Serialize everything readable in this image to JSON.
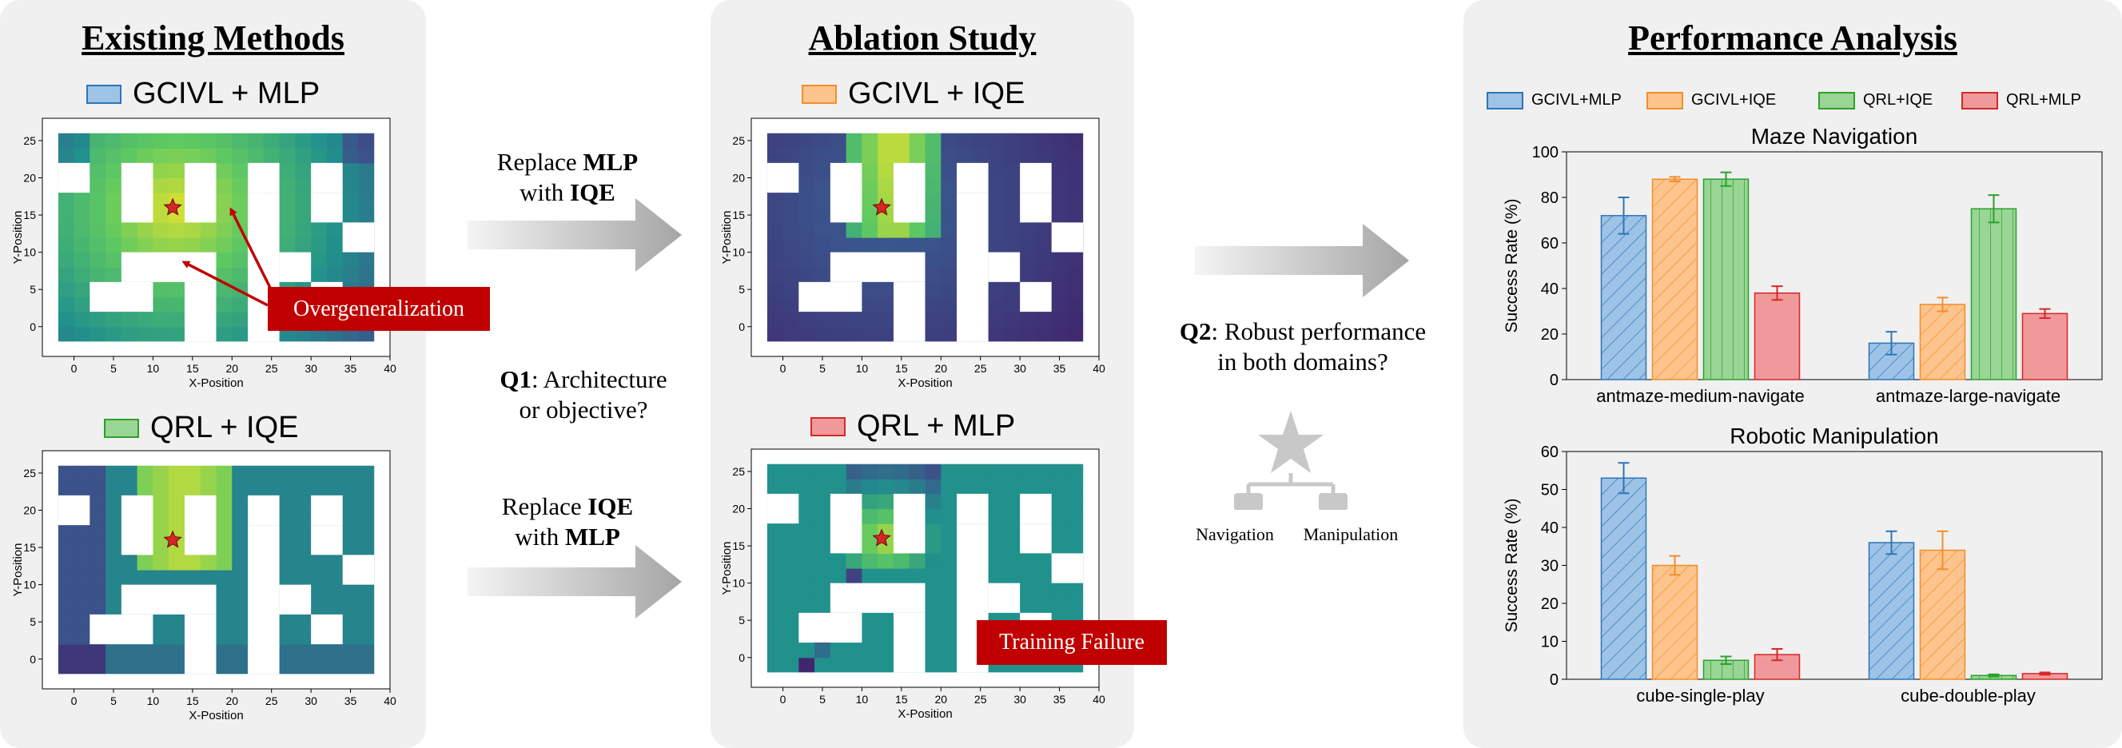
{
  "panels": {
    "existing": {
      "title": "Existing Methods"
    },
    "ablation": {
      "title": "Ablation Study"
    },
    "performance": {
      "title": "Performance Analysis"
    }
  },
  "maps": [
    {
      "id": "m1",
      "label": "GCIVL + MLP",
      "swatch": "blue",
      "field": "gcivl_mlp"
    },
    {
      "id": "m2",
      "label": "QRL + IQE",
      "swatch": "green",
      "field": "qrl_iqe"
    },
    {
      "id": "m3",
      "label": "GCIVL + IQE",
      "swatch": "orange",
      "field": "gcivl_iqe"
    },
    {
      "id": "m4",
      "label": "QRL + MLP",
      "swatch": "red",
      "field": "qrl_mlp"
    }
  ],
  "map_axes": {
    "xlabel": "X-Position",
    "ylabel": "Y-Position",
    "xticks": [
      "0",
      "5",
      "10",
      "15",
      "20",
      "25",
      "30",
      "35",
      "40"
    ],
    "yticks": [
      "0",
      "5",
      "10",
      "15",
      "20",
      "25"
    ]
  },
  "callouts": {
    "overgeneralization": "Overgeneralization",
    "training_failure": "Training Failure"
  },
  "middle": {
    "replace1_pre": "Replace ",
    "replace1_b1": "MLP",
    "replace1_line2_pre": "with ",
    "replace1_b2": "IQE",
    "replace2_pre": "Replace ",
    "replace2_b1": "IQE",
    "replace2_line2_pre": "with ",
    "replace2_b2": "MLP",
    "q1_b": "Q1",
    "q1_rest": ": Architecture",
    "q1_line2": "or objective?",
    "q2_b": "Q2",
    "q2_rest": ": Robust performance",
    "q2_line2": "in both domains?",
    "tree_left": "Navigation",
    "tree_right": "Manipulation"
  },
  "colors": {
    "blue": {
      "fill": "#9dc3e6",
      "stroke": "#2e75b6"
    },
    "orange": {
      "fill": "#fdc48d",
      "stroke": "#f28e2b"
    },
    "green": {
      "fill": "#99d594",
      "stroke": "#2ca02c"
    },
    "red": {
      "fill": "#f0999b",
      "stroke": "#d62728"
    },
    "callout": "#c00000"
  },
  "chart_data": [
    {
      "type": "bar",
      "title": "Maze Navigation",
      "ylabel": "Success Rate (%)",
      "ylim": [
        0,
        100
      ],
      "yticks": [
        "0",
        "20",
        "40",
        "60",
        "80",
        "100"
      ],
      "categories": [
        "antmaze-medium-navigate",
        "antmaze-large-navigate"
      ],
      "legend": "top",
      "series": [
        {
          "name": "GCIVL+MLP",
          "values": [
            72,
            16
          ],
          "errors": [
            8,
            5
          ]
        },
        {
          "name": "GCIVL+IQE",
          "values": [
            88,
            33
          ],
          "errors": [
            1,
            3
          ]
        },
        {
          "name": "QRL+IQE",
          "values": [
            88,
            75
          ],
          "errors": [
            3,
            6
          ]
        },
        {
          "name": "QRL+MLP",
          "values": [
            38,
            29
          ],
          "errors": [
            3,
            2
          ]
        }
      ]
    },
    {
      "type": "bar",
      "title": "Robotic Manipulation",
      "ylabel": "Success Rate (%)",
      "ylim": [
        0,
        60
      ],
      "yticks": [
        "0",
        "10",
        "20",
        "30",
        "40",
        "50",
        "60"
      ],
      "categories": [
        "cube-single-play",
        "cube-double-play"
      ],
      "series": [
        {
          "name": "GCIVL+MLP",
          "values": [
            53,
            36
          ],
          "errors": [
            4,
            3
          ]
        },
        {
          "name": "GCIVL+IQE",
          "values": [
            30,
            34
          ],
          "errors": [
            2.5,
            5
          ]
        },
        {
          "name": "QRL+IQE",
          "values": [
            5,
            1
          ],
          "errors": [
            1,
            0.3
          ]
        },
        {
          "name": "QRL+MLP",
          "values": [
            6.5,
            1.5
          ],
          "errors": [
            1.5,
            0.3
          ]
        }
      ]
    }
  ]
}
